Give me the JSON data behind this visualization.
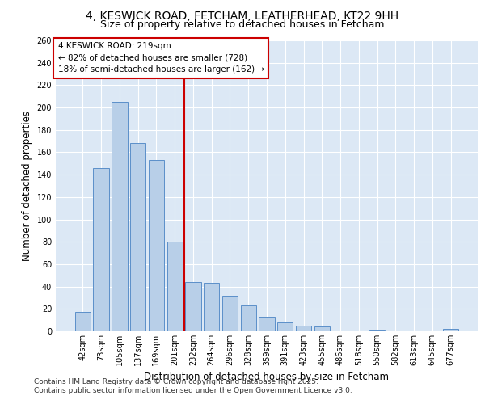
{
  "title": "4, KESWICK ROAD, FETCHAM, LEATHERHEAD, KT22 9HH",
  "subtitle": "Size of property relative to detached houses in Fetcham",
  "xlabel": "Distribution of detached houses by size in Fetcham",
  "ylabel": "Number of detached properties",
  "categories": [
    "42sqm",
    "73sqm",
    "105sqm",
    "137sqm",
    "169sqm",
    "201sqm",
    "232sqm",
    "264sqm",
    "296sqm",
    "328sqm",
    "359sqm",
    "391sqm",
    "423sqm",
    "455sqm",
    "486sqm",
    "518sqm",
    "550sqm",
    "582sqm",
    "613sqm",
    "645sqm",
    "677sqm"
  ],
  "values": [
    17,
    146,
    205,
    168,
    153,
    80,
    44,
    43,
    32,
    23,
    13,
    8,
    5,
    4,
    0,
    0,
    1,
    0,
    0,
    0,
    2
  ],
  "bar_color": "#b8cfe8",
  "bar_edge_color": "#5b8fc9",
  "vline_x_index": 6,
  "vline_color": "#cc0000",
  "annotation_text_line1": "4 KESWICK ROAD: 219sqm",
  "annotation_text_line2": "← 82% of detached houses are smaller (728)",
  "annotation_text_line3": "18% of semi-detached houses are larger (162) →",
  "annotation_box_color": "#cc0000",
  "ylim": [
    0,
    260
  ],
  "yticks": [
    0,
    20,
    40,
    60,
    80,
    100,
    120,
    140,
    160,
    180,
    200,
    220,
    240,
    260
  ],
  "background_color": "#dce8f5",
  "grid_color": "#ffffff",
  "footer_line1": "Contains HM Land Registry data © Crown copyright and database right 2025.",
  "footer_line2": "Contains public sector information licensed under the Open Government Licence v3.0.",
  "title_fontsize": 10,
  "subtitle_fontsize": 9,
  "axis_label_fontsize": 8.5,
  "tick_fontsize": 7,
  "annotation_fontsize": 7.5,
  "footer_fontsize": 6.5
}
